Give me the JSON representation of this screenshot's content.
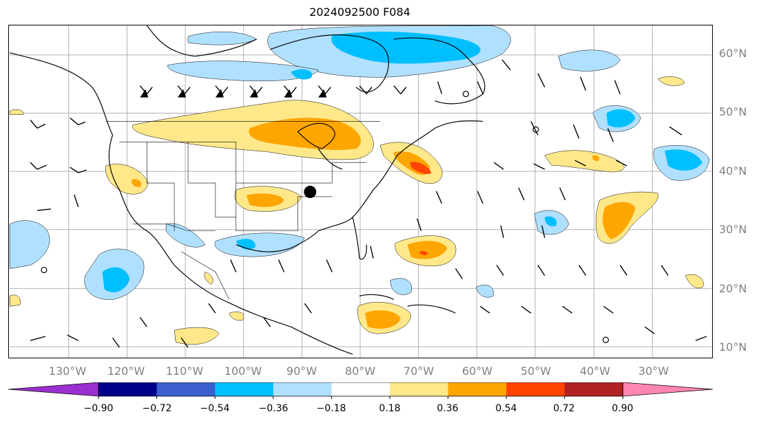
{
  "title": "2024092500 F084",
  "lat_labels": [
    "60°N",
    "50°N",
    "40°N",
    "30°N",
    "20°N",
    "10°N"
  ],
  "lon_labels": [
    "130°W",
    "120°W",
    "110°W",
    "100°W",
    "90°W",
    "80°W",
    "70°W",
    "60°W",
    "50°W",
    "40°W",
    "30°W"
  ],
  "colorbar": {
    "ticks": [
      "−0.90",
      "−0.72",
      "−0.54",
      "−0.36",
      "−0.18",
      "0.18",
      "0.36",
      "0.54",
      "0.72",
      "0.90"
    ],
    "colors": [
      "#9b30d0",
      "#00008b",
      "#3a5fcd",
      "#00bfff",
      "#b0e0ff",
      "#ffffff",
      "#ffe88a",
      "#ffa500",
      "#ff4500",
      "#b22222",
      "#ff85b2"
    ]
  },
  "map": {
    "marker": "black-dot",
    "fill_colors": {
      "light_blue": "#b0e0ff",
      "blue": "#00bfff",
      "yellow": "#ffe88a",
      "orange": "#ffa500",
      "red": "#ff4500"
    }
  }
}
